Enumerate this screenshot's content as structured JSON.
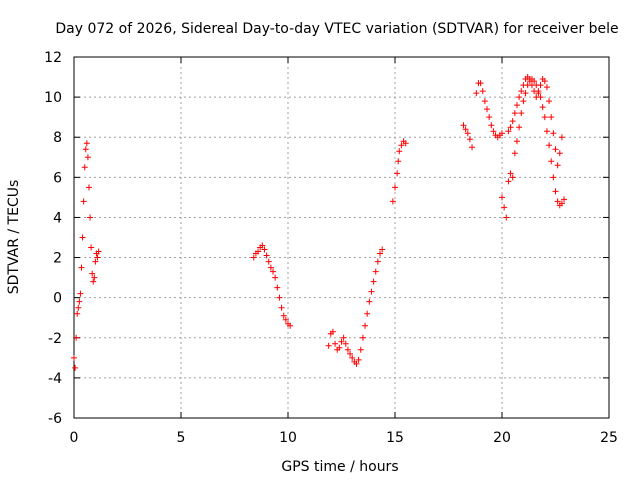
{
  "chart_data": {
    "type": "scatter",
    "title": "Day 072 of 2026, Sidereal Day-to-day VTEC variation (SDTVAR) for receiver bele",
    "xlabel": "GPS time / hours",
    "ylabel": "SDTVAR / TECUs",
    "xlim": [
      0,
      25
    ],
    "ylim": [
      -6,
      12
    ],
    "x_ticks": [
      "0",
      "5",
      "10",
      "15",
      "20",
      "25"
    ],
    "y_ticks": [
      "-6",
      "-4",
      "-2",
      "0",
      "2",
      "4",
      "6",
      "8",
      "10",
      "12"
    ],
    "grid": true,
    "marker": "plus",
    "color": "#ff0000",
    "series": [
      {
        "name": "segment-1",
        "x": [
          0.0,
          0.05,
          0.1,
          0.15,
          0.2,
          0.25,
          0.3,
          0.35,
          0.4,
          0.45,
          0.5,
          0.55,
          0.6,
          0.65,
          0.7,
          0.75,
          0.8,
          0.85,
          0.9,
          0.95,
          1.0,
          1.05,
          1.1,
          1.15
        ],
        "y": [
          -3.0,
          -3.5,
          -2.0,
          -0.8,
          -0.5,
          -0.2,
          0.2,
          1.5,
          3.0,
          4.8,
          6.5,
          7.4,
          7.7,
          7.0,
          5.5,
          4.0,
          2.5,
          1.2,
          0.8,
          1.0,
          1.8,
          2.2,
          2.0,
          2.3
        ]
      },
      {
        "name": "segment-2",
        "x": [
          8.4,
          8.5,
          8.6,
          8.7,
          8.8,
          8.9,
          9.0,
          9.1,
          9.2,
          9.3,
          9.4,
          9.5,
          9.6,
          9.7,
          9.8,
          9.9,
          10.0,
          10.1
        ],
        "y": [
          2.0,
          2.2,
          2.3,
          2.5,
          2.6,
          2.4,
          2.1,
          1.8,
          1.5,
          1.3,
          1.0,
          0.5,
          0.0,
          -0.5,
          -0.9,
          -1.1,
          -1.3,
          -1.4
        ]
      },
      {
        "name": "segment-3",
        "x": [
          11.9,
          12.0,
          12.1,
          12.2,
          12.3,
          12.4,
          12.5,
          12.6,
          12.7,
          12.8,
          12.9,
          13.0,
          13.1,
          13.2,
          13.3,
          13.4,
          13.5,
          13.6,
          13.7,
          13.8,
          13.9,
          14.0,
          14.1,
          14.2,
          14.3,
          14.4
        ],
        "y": [
          -2.4,
          -1.8,
          -1.7,
          -2.3,
          -2.6,
          -2.5,
          -2.2,
          -2.0,
          -2.3,
          -2.6,
          -2.8,
          -3.0,
          -3.2,
          -3.3,
          -3.1,
          -2.6,
          -2.0,
          -1.4,
          -0.8,
          -0.2,
          0.3,
          0.8,
          1.3,
          1.8,
          2.2,
          2.4
        ]
      },
      {
        "name": "segment-4",
        "x": [
          14.9,
          15.0,
          15.1,
          15.15,
          15.2,
          15.3,
          15.4,
          15.5
        ],
        "y": [
          4.8,
          5.5,
          6.2,
          6.8,
          7.3,
          7.6,
          7.8,
          7.7
        ]
      },
      {
        "name": "segment-5",
        "x": [
          18.2,
          18.3,
          18.4,
          18.5,
          18.6,
          18.8,
          18.9,
          19.0,
          19.1,
          19.2,
          19.3,
          19.4,
          19.5,
          19.6,
          19.7,
          19.8,
          19.9,
          20.0
        ],
        "y": [
          8.6,
          8.4,
          8.2,
          7.9,
          7.5,
          10.2,
          10.7,
          10.7,
          10.3,
          9.8,
          9.4,
          9.0,
          8.6,
          8.3,
          8.1,
          8.0,
          8.1,
          8.2
        ]
      },
      {
        "name": "segment-6",
        "x": [
          20.0,
          20.1,
          20.2,
          20.3,
          20.4,
          20.5,
          20.6,
          20.7,
          20.8,
          20.9,
          21.0,
          21.1,
          21.2,
          21.3,
          21.4,
          21.5,
          21.6,
          21.7,
          21.8,
          21.9,
          22.0,
          22.1,
          22.2,
          22.3,
          22.4,
          22.5,
          22.6,
          22.7,
          22.8,
          22.9
        ],
        "y": [
          5.0,
          4.5,
          4.0,
          5.8,
          6.2,
          6.0,
          7.2,
          7.8,
          8.5,
          9.2,
          9.8,
          10.2,
          10.6,
          10.8,
          10.9,
          10.8,
          10.6,
          10.3,
          10.0,
          9.5,
          9.0,
          8.3,
          7.6,
          6.8,
          6.0,
          5.3,
          4.8,
          4.6,
          4.7,
          4.9
        ]
      },
      {
        "name": "segment-7",
        "x": [
          20.3,
          20.4,
          20.5,
          20.6,
          20.7,
          20.8,
          20.9,
          21.0,
          21.1,
          21.2,
          21.3,
          21.4,
          21.5,
          21.6,
          21.7,
          21.8,
          21.9,
          22.0,
          22.1,
          22.2,
          22.3,
          22.4,
          22.5,
          22.6,
          22.7,
          22.8
        ],
        "y": [
          8.3,
          8.5,
          8.8,
          9.2,
          9.6,
          10.0,
          10.3,
          10.6,
          10.9,
          11.0,
          10.9,
          10.6,
          10.3,
          10.0,
          10.2,
          10.6,
          10.9,
          10.8,
          10.5,
          9.8,
          9.0,
          8.2,
          7.4,
          6.6,
          7.2,
          8.0
        ]
      }
    ]
  }
}
